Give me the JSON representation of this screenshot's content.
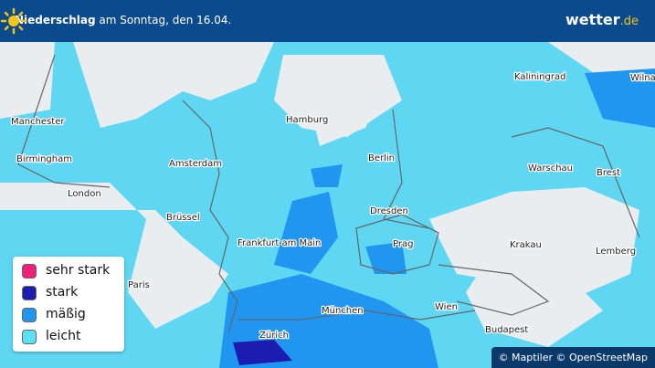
{
  "header": {
    "title_bold": "Niederschlag",
    "title_rest": "am Sonntag, den 16.04.",
    "logo_main": "wetter",
    "logo_suffix": ".de"
  },
  "cities": [
    "Manchester",
    "Birmingham",
    "London",
    "Amsterdam",
    "Hamburg",
    "Berlin",
    "Kaliningrad",
    "Wilna",
    "Warschau",
    "Brest",
    "Brüssel",
    "Dresden",
    "Frankfurt am Main",
    "Prag",
    "Krakau",
    "Lemberg",
    "Paris",
    "München",
    "Wien",
    "Zürich",
    "Budapest"
  ],
  "legend": [
    {
      "label": "sehr stark",
      "color": "#f0207a"
    },
    {
      "label": "stark",
      "color": "#1c1cb0"
    },
    {
      "label": "mäßig",
      "color": "#2196f0"
    },
    {
      "label": "leicht",
      "color": "#5be0f5"
    }
  ],
  "attribution": "© Maptiler © OpenStreetMap"
}
